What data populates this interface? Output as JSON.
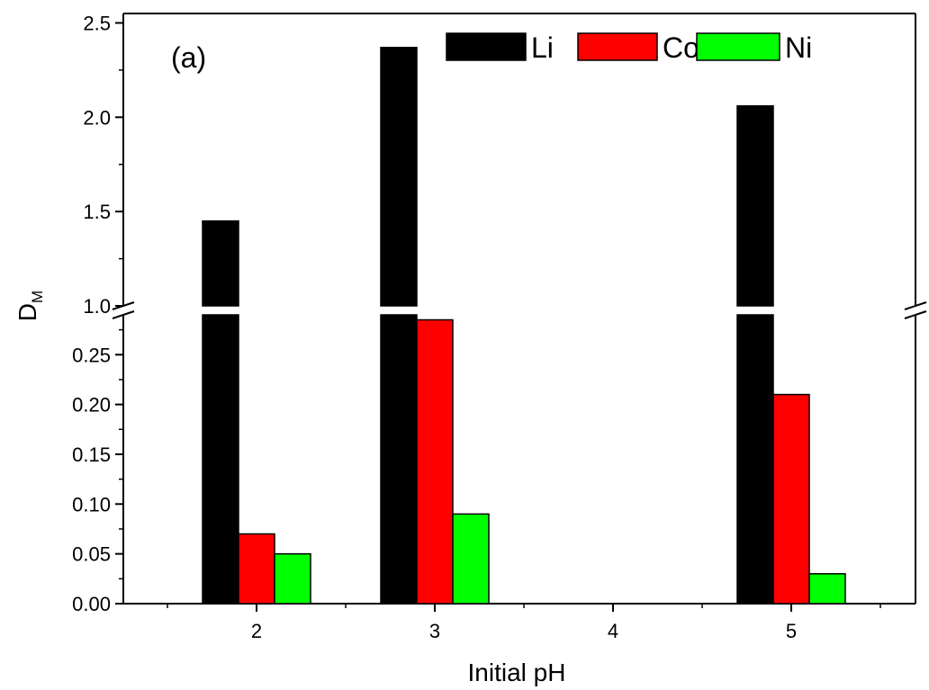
{
  "chart_data": {
    "type": "bar",
    "panel_label": "(a)",
    "xlabel": "Initial pH",
    "ylabel": "D",
    "ylabel_subscript": "M",
    "x_ticks": [
      "2",
      "3",
      "4",
      "5"
    ],
    "categories": [
      "2",
      "3",
      "5"
    ],
    "series": [
      {
        "name": "Li",
        "color": "#000000",
        "values": [
          1.45,
          2.37,
          2.06
        ]
      },
      {
        "name": "Co",
        "color": "#ff0000",
        "values": [
          0.07,
          0.285,
          0.21
        ]
      },
      {
        "name": "Ni",
        "color": "#00ff00",
        "values": [
          0.05,
          0.09,
          0.03
        ]
      }
    ],
    "axis_break": {
      "lower_range": [
        0,
        0.29
      ],
      "upper_range": [
        1.0,
        2.55
      ]
    },
    "y_ticks_lower": [
      "0.00",
      "0.05",
      "0.10",
      "0.15",
      "0.20",
      "0.25"
    ],
    "y_ticks_upper": [
      "1.0",
      "1.5",
      "2.0",
      "2.5"
    ],
    "legend_position": "top-right",
    "grid": false
  }
}
